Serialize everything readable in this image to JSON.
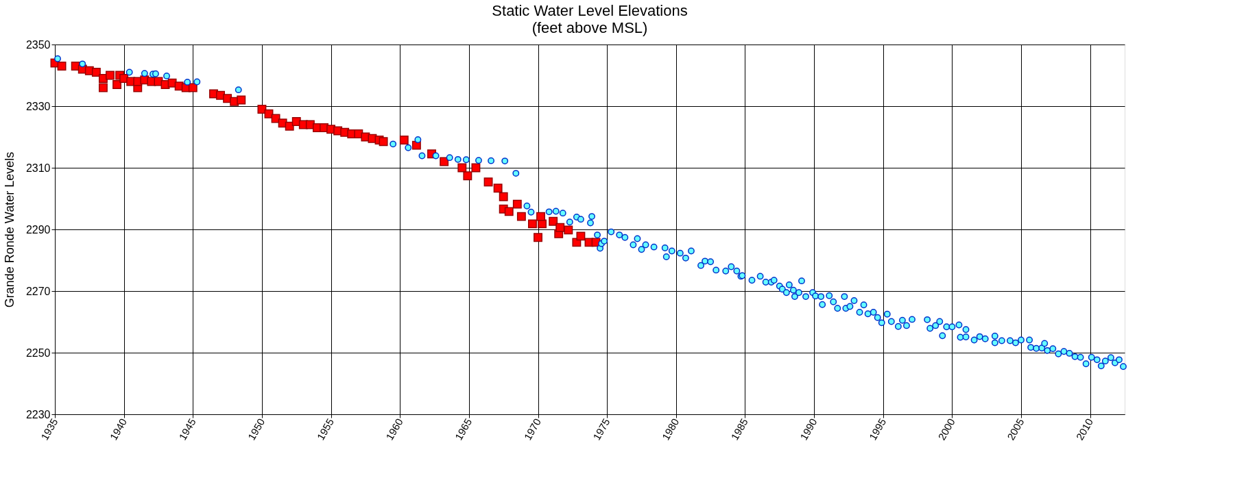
{
  "chart_data": {
    "type": "scatter",
    "title": "Static Water Level Elevations",
    "subtitle": "(feet above MSL)",
    "ylabel": "Grande Ronde Water Levels",
    "xlim": [
      1935,
      2012.5
    ],
    "xticks": [
      1935,
      1940,
      1945,
      1950,
      1955,
      1960,
      1965,
      1970,
      1975,
      1980,
      1985,
      1990,
      1995,
      2000,
      2005,
      2010
    ],
    "ylim": [
      2230,
      2350
    ],
    "yticks": [
      2230,
      2250,
      2270,
      2290,
      2310,
      2330,
      2350
    ],
    "grid": true,
    "series": [
      {
        "color": "#ff0000",
        "marker": "square",
        "x": [
          1935.0,
          1935.5,
          1936.5,
          1937.0,
          1937.5,
          1938.0,
          1938.5,
          1938.5,
          1939.0,
          1939.5,
          1939.7,
          1940.0,
          1940.5,
          1941.0,
          1941.0,
          1941.5,
          1942.0,
          1942.5,
          1943.0,
          1943.5,
          1944.0,
          1944.5,
          1945.0,
          1946.5,
          1947.0,
          1947.5,
          1948.0,
          1948.5,
          1950.0,
          1950.5,
          1951.0,
          1951.5,
          1952.0,
          1952.5,
          1953.0,
          1953.5,
          1954.0,
          1954.5,
          1955.0,
          1955.5,
          1956.0,
          1956.5,
          1957.0,
          1957.5,
          1958.0,
          1958.5,
          1958.8,
          1960.3,
          1961.2,
          1962.3,
          1963.2,
          1964.5,
          1964.9,
          1965.5,
          1966.4,
          1967.1,
          1967.5,
          1967.5,
          1967.9,
          1968.5,
          1968.8,
          1969.6,
          1970.0,
          1970.3,
          1970.2,
          1971.1,
          1971.5,
          1971.6,
          1972.2,
          1972.8,
          1973.1,
          1973.7,
          1974.2
        ],
        "values": [
          2344,
          2343,
          2343,
          2342,
          2341.5,
          2341,
          2339,
          2336,
          2340,
          2337,
          2340,
          2339,
          2338,
          2336,
          2338,
          2338.5,
          2338,
          2338,
          2337,
          2337.5,
          2336.5,
          2336,
          2336,
          2334,
          2333.5,
          2332.5,
          2331.5,
          2332,
          2329,
          2327.5,
          2326,
          2324.5,
          2323.5,
          2325,
          2324,
          2324,
          2323,
          2323,
          2322.5,
          2322,
          2321.5,
          2321,
          2321,
          2320,
          2319.5,
          2319,
          2318.5,
          2319,
          2317.3,
          2314.5,
          2312,
          2310,
          2307.4,
          2310,
          2305.4,
          2303.4,
          2300.6,
          2296.6,
          2295.8,
          2298.2,
          2294.2,
          2291.8,
          2287.4,
          2291.8,
          2294.2,
          2292.6,
          2288.6,
          2290.6,
          2289.8,
          2285.8,
          2287.8,
          2285.8,
          2285.8
        ]
      },
      {
        "color": "#66ffff",
        "marker": "circle",
        "x": [
          1935.2,
          1937.0,
          1940.4,
          1941.5,
          1942.1,
          1942.3,
          1943.1,
          1944.6,
          1945.3,
          1948.3,
          1959.5,
          1960.6,
          1961.3,
          1961.6,
          1962.6,
          1963.6,
          1964.2,
          1964.8,
          1965.7,
          1966.6,
          1967.6,
          1968.4,
          1969.2,
          1969.5,
          1970.8,
          1971.3,
          1971.8,
          1972.3,
          1972.8,
          1973.1,
          1973.9,
          1973.8,
          1974.3,
          1974.5,
          1974.6,
          1974.8,
          1975.3,
          1975.9,
          1976.3,
          1976.9,
          1977.2,
          1977.5,
          1977.8,
          1978.4,
          1979.2,
          1979.3,
          1979.7,
          1980.3,
          1980.7,
          1981.1,
          1981.8,
          1982.1,
          1982.5,
          1982.9,
          1983.6,
          1984.0,
          1984.4,
          1984.7,
          1984.8,
          1985.5,
          1986.1,
          1986.5,
          1986.9,
          1987.1,
          1987.5,
          1987.7,
          1988.0,
          1988.2,
          1988.5,
          1988.6,
          1988.9,
          1989.1,
          1989.4,
          1989.9,
          1990.1,
          1990.5,
          1990.6,
          1991.1,
          1991.4,
          1991.7,
          1992.2,
          1992.3,
          1992.6,
          1992.9,
          1993.3,
          1993.6,
          1993.9,
          1994.3,
          1994.6,
          1994.9,
          1995.3,
          1995.6,
          1996.1,
          1996.4,
          1996.7,
          1997.1,
          1998.2,
          1998.4,
          1998.8,
          1999.1,
          1999.3,
          1999.6,
          2000.0,
          2000.5,
          2000.6,
          2001.0,
          2001.0,
          2001.6,
          2002.0,
          2002.4,
          2003.1,
          2003.1,
          2003.6,
          2004.2,
          2004.6,
          2005.0,
          2005.6,
          2005.7,
          2006.1,
          2006.5,
          2006.7,
          2006.9,
          2007.3,
          2007.7,
          2008.1,
          2008.5,
          2008.9,
          2009.3,
          2009.7,
          2010.1,
          2010.5,
          2010.8,
          2011.1,
          2011.5,
          2011.8,
          2012.1,
          2012.4
        ],
        "values": [
          2345.4,
          2343.7,
          2341,
          2340.6,
          2340.4,
          2340.5,
          2339.8,
          2337.8,
          2337.9,
          2335.3,
          2317.7,
          2316.5,
          2319.1,
          2313.9,
          2313.9,
          2313.3,
          2312.7,
          2312.6,
          2312.4,
          2312.3,
          2312.2,
          2308.2,
          2297.6,
          2295.6,
          2295.7,
          2295.9,
          2295.3,
          2292.4,
          2294,
          2293.3,
          2294.2,
          2292.1,
          2288.2,
          2283.9,
          2285.4,
          2286.2,
          2289.2,
          2288.2,
          2287.4,
          2285,
          2287,
          2283.5,
          2285,
          2284.3,
          2284,
          2281.1,
          2283,
          2282.3,
          2280.7,
          2283,
          2278.3,
          2279.7,
          2279.5,
          2276.8,
          2276.5,
          2277.9,
          2276.5,
          2274.8,
          2275,
          2273.5,
          2274.8,
          2272.9,
          2272.9,
          2273.5,
          2271.6,
          2270.6,
          2269.5,
          2272,
          2270.3,
          2268.2,
          2269.5,
          2273.3,
          2268.2,
          2269.5,
          2268.4,
          2268.2,
          2265.6,
          2268.5,
          2266.5,
          2264.4,
          2268.2,
          2264.4,
          2265,
          2266.9,
          2263.1,
          2265.5,
          2262.6,
          2263.1,
          2261.4,
          2259.7,
          2262.5,
          2260.1,
          2258.5,
          2260.5,
          2258.8,
          2260.8,
          2260.7,
          2257.9,
          2258.8,
          2260.1,
          2255.5,
          2258.4,
          2258.4,
          2259,
          2255,
          2257.5,
          2255.1,
          2254.1,
          2255.2,
          2254.5,
          2255.4,
          2253.2,
          2253.9,
          2253.9,
          2253.2,
          2254.1,
          2254.1,
          2251.7,
          2251.4,
          2251.5,
          2253,
          2250.7,
          2251.3,
          2249.6,
          2250.4,
          2249.8,
          2248.7,
          2248.5,
          2246.4,
          2248.5,
          2247.7,
          2245.7,
          2247.3,
          2248.4,
          2246.7,
          2247.7,
          2245.5
        ]
      }
    ]
  }
}
